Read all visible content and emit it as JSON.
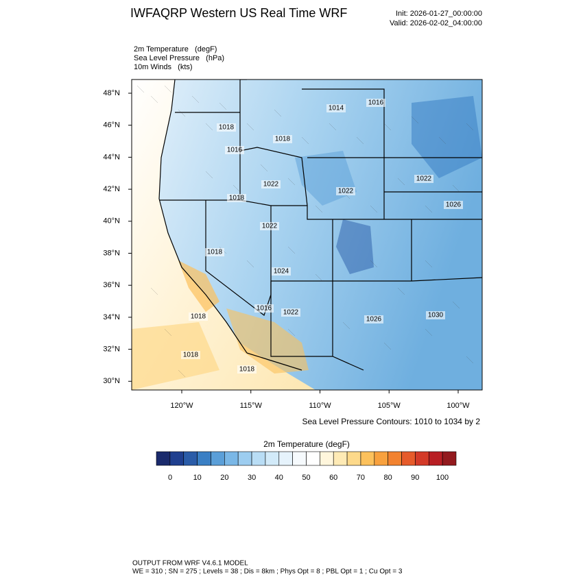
{
  "header": {
    "title": "IWFAQRP Western US Real Time WRF",
    "init": "Init: 2026-01-27_00:00:00",
    "valid": "Valid: 2026-02-02_04:00:00"
  },
  "fields": [
    "2m Temperature   (degF)",
    "Sea Level Pressure   (hPa)",
    "10m Winds   (kts)"
  ],
  "map": {
    "lat_labels": [
      "48°N",
      "46°N",
      "44°N",
      "42°N",
      "40°N",
      "38°N",
      "36°N",
      "34°N",
      "32°N",
      "30°N"
    ],
    "lon_labels": [
      "120°W",
      "115°W",
      "110°W",
      "105°W",
      "100°W"
    ],
    "contour_labels": [
      "1014",
      "1016",
      "1018",
      "1018",
      "1016",
      "1022",
      "1022",
      "1022",
      "1026",
      "1018",
      "1022",
      "1018",
      "1024",
      "1016",
      "1022",
      "1026",
      "1030",
      "1018",
      "1018",
      "1018"
    ],
    "contour_note": "Sea Level Pressure Contours: 1010 to 1034 by 2"
  },
  "colorbar": {
    "title": "2m Temperature  (degF)",
    "colors": [
      "#1a2a6c",
      "#1f3f8f",
      "#2a5ca8",
      "#3a7fc4",
      "#5b9fd8",
      "#7ab7e6",
      "#9dcdf0",
      "#b9ddf5",
      "#d2eaf9",
      "#e6f3fc",
      "#f6fafd",
      "#ffffff",
      "#fff6dc",
      "#feeab5",
      "#fdd98a",
      "#fcc15c",
      "#f8a13e",
      "#f2822f",
      "#e65b2a",
      "#d33a28",
      "#b81f24",
      "#931a1e"
    ],
    "ticks": [
      0,
      10,
      20,
      30,
      40,
      50,
      60,
      70,
      80,
      90,
      100
    ]
  },
  "footer": {
    "line1": "OUTPUT FROM WRF V4.6.1 MODEL",
    "line2": "WE = 310 ; SN = 275 ; Levels = 38 ; Dis = 8km ; Phys Opt = 8 ; PBL Opt = 1 ; Cu Opt = 3"
  }
}
